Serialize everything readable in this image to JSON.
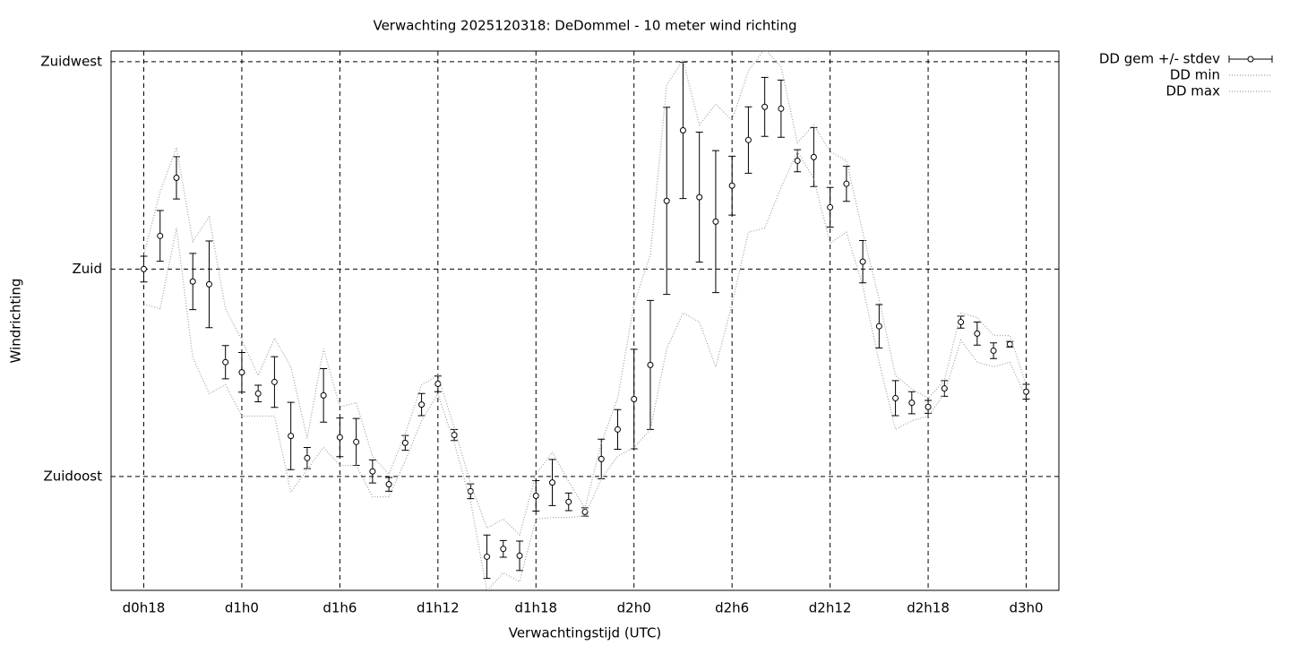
{
  "chart_data": {
    "type": "errorline",
    "title": "Verwachting 2025120318: DeDommel - 10 meter wind richting",
    "x_label": "Verwachtingstijd (UTC)",
    "y_label": "Windrichting",
    "x": [
      18,
      19,
      20,
      21,
      22,
      23,
      24,
      25,
      26,
      27,
      28,
      29,
      30,
      31,
      32,
      33,
      34,
      35,
      36,
      37,
      38,
      39,
      40,
      41,
      42,
      43,
      44,
      45,
      46,
      47,
      48,
      49,
      50,
      51,
      52,
      53,
      54,
      55,
      56,
      57,
      58,
      59,
      60,
      61,
      62,
      63,
      64,
      65,
      66,
      67,
      68,
      69,
      70,
      71,
      72
    ],
    "xlim": [
      16,
      74
    ],
    "xticks": [
      {
        "value": 18,
        "label": "d0h18"
      },
      {
        "value": 24,
        "label": "d1h0"
      },
      {
        "value": 30,
        "label": "d1h6"
      },
      {
        "value": 36,
        "label": "d1h12"
      },
      {
        "value": 42,
        "label": "d1h18"
      },
      {
        "value": 48,
        "label": "d2h0"
      },
      {
        "value": 54,
        "label": "d2h6"
      },
      {
        "value": 60,
        "label": "d2h12"
      },
      {
        "value": 66,
        "label": "d2h18"
      },
      {
        "value": 72,
        "label": "d3h0"
      }
    ],
    "ylim": [
      110.3,
      227.3
    ],
    "yticks": [
      {
        "value": 135,
        "label": "Zuidoost"
      },
      {
        "value": 180,
        "label": "Zuid"
      },
      {
        "value": 225,
        "label": "Zuidwest"
      }
    ],
    "grid": true,
    "legend": "outside-top-right",
    "series": [
      {
        "name": "DD gem +/- stdev",
        "color": "#000000",
        "style": "errorbars",
        "values": [
          180.0,
          187.2,
          199.8,
          177.3,
          176.7,
          159.8,
          157.6,
          153.0,
          155.5,
          143.8,
          139.0,
          152.6,
          143.5,
          142.5,
          136.1,
          133.3,
          142.3,
          150.6,
          155.1,
          144.0,
          131.8,
          117.6,
          119.3,
          117.8,
          130.8,
          133.7,
          129.5,
          127.3,
          138.8,
          145.2,
          151.8,
          159.2,
          194.8,
          210.1,
          195.6,
          190.3,
          198.1,
          208.0,
          215.2,
          214.8,
          203.5,
          204.3,
          193.4,
          198.5,
          181.6,
          167.6,
          152.0,
          151.0,
          150.1,
          154.1,
          168.5,
          166.0,
          162.3,
          163.7,
          153.4
        ],
        "error": [
          2.8,
          5.5,
          4.6,
          6.1,
          9.4,
          3.6,
          4.3,
          1.8,
          5.5,
          7.3,
          2.3,
          5.8,
          4.2,
          5.1,
          2.5,
          1.5,
          1.6,
          2.4,
          1.7,
          1.2,
          1.6,
          4.7,
          1.8,
          3.2,
          3.3,
          5.0,
          1.9,
          0.9,
          4.3,
          4.3,
          10.8,
          14.0,
          20.3,
          14.8,
          14.1,
          15.4,
          6.4,
          7.2,
          6.4,
          6.2,
          2.4,
          6.4,
          4.3,
          3.8,
          4.6,
          4.7,
          3.8,
          2.4,
          1.4,
          1.7,
          1.3,
          2.5,
          1.7,
          0.6,
          1.6
        ]
      },
      {
        "name": "DD min",
        "color": "#a0a0a0",
        "style": "dotted",
        "values": [
          172.4,
          171.4,
          188.9,
          160.8,
          153.0,
          154.9,
          148.1,
          148.1,
          148.1,
          131.6,
          136.5,
          141.3,
          137.4,
          137.4,
          130.6,
          130.6,
          138.4,
          147.1,
          153.0,
          142.3,
          129.6,
          110.2,
          114.1,
          112.2,
          125.8,
          126.1,
          126.1,
          126.5,
          134.5,
          139.4,
          141.3,
          145.2,
          162.7,
          170.5,
          168.5,
          158.8,
          172.4,
          188.0,
          188.9,
          197.7,
          205.5,
          199.6,
          185.6,
          188.0,
          176.3,
          159.8,
          145.2,
          147.1,
          148.1,
          153.0,
          164.6,
          159.8,
          158.8,
          159.8,
          152.0
        ]
      },
      {
        "name": "DD max",
        "color": "#a0a0a0",
        "style": "dotted",
        "values": [
          183.1,
          196.7,
          206.4,
          186.0,
          191.3,
          171.4,
          164.6,
          156.9,
          165.0,
          158.8,
          143.3,
          162.7,
          150.1,
          151.0,
          139.4,
          135.5,
          144.2,
          154.9,
          156.9,
          145.6,
          133.5,
          123.8,
          125.8,
          122.3,
          135.5,
          140.3,
          133.9,
          128.1,
          142.3,
          152.0,
          172.4,
          183.1,
          220.0,
          225.3,
          211.3,
          215.8,
          212.3,
          223.0,
          227.8,
          223.9,
          207.4,
          211.3,
          205.5,
          203.5,
          188.0,
          173.4,
          156.9,
          154.0,
          152.0,
          155.9,
          170.5,
          169.5,
          165.6,
          165.6,
          154.9
        ]
      }
    ]
  }
}
